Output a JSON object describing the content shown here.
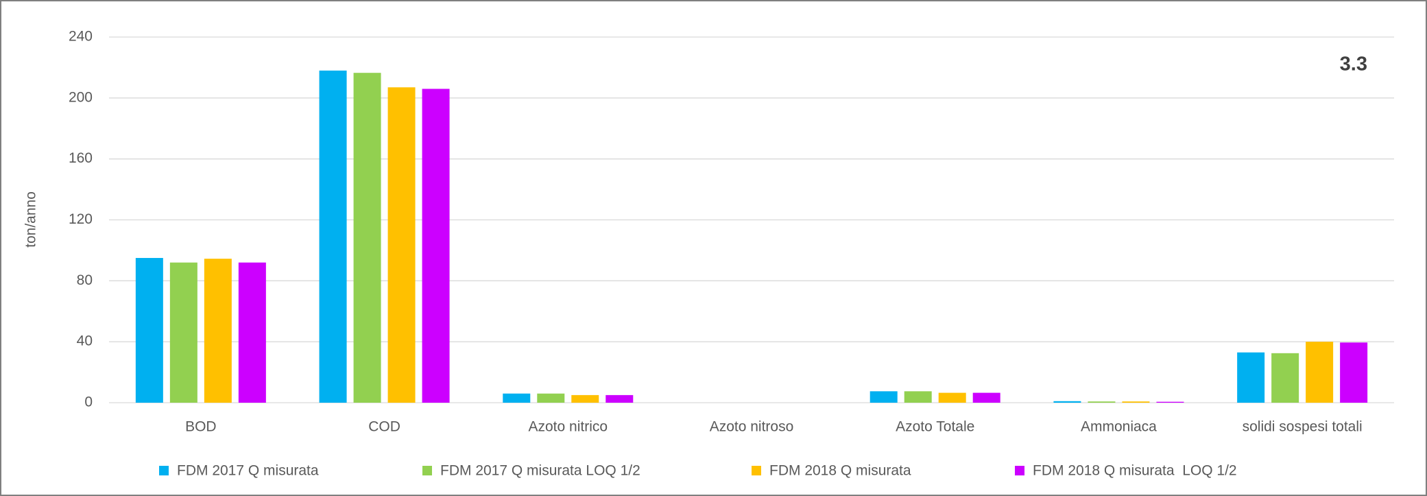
{
  "chart_data": {
    "type": "bar",
    "annotation": "3.3",
    "y_label": "ton/anno",
    "categories": [
      "BOD",
      "COD",
      "Azoto nitrico",
      "Azoto nitroso",
      "Azoto Totale",
      "Ammoniaca",
      "solidi sospesi totali"
    ],
    "series": [
      {
        "name": "FDM 2017 Q misurata",
        "color": "#00b0f0",
        "values": [
          95,
          218,
          6,
          0,
          7.5,
          1,
          33
        ]
      },
      {
        "name": "FDM 2017 Q misurata LOQ 1/2",
        "color": "#92d050",
        "values": [
          92,
          216.5,
          6,
          0,
          7.5,
          0.8,
          32.5
        ]
      },
      {
        "name": "FDM 2018 Q misurata",
        "color": "#ffc000",
        "values": [
          94.5,
          207,
          5,
          0,
          6.5,
          0.8,
          40
        ]
      },
      {
        "name": "FDM 2018 Q misurata  LOQ 1/2",
        "color": "#cc00ff",
        "values": [
          92,
          206,
          5,
          0,
          6.5,
          0.6,
          39.5
        ]
      }
    ],
    "ylim": [
      0,
      240
    ],
    "yticks": [
      0,
      40,
      80,
      120,
      160,
      200,
      240
    ],
    "grid": true,
    "legend": "bottom"
  }
}
